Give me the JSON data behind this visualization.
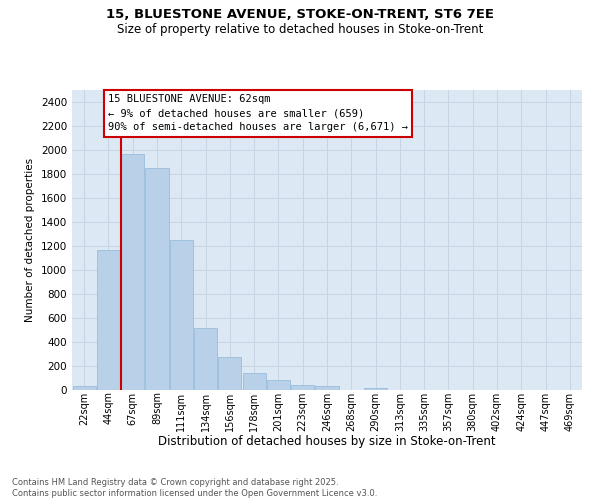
{
  "title1": "15, BLUESTONE AVENUE, STOKE-ON-TRENT, ST6 7EE",
  "title2": "Size of property relative to detached houses in Stoke-on-Trent",
  "xlabel": "Distribution of detached houses by size in Stoke-on-Trent",
  "ylabel": "Number of detached properties",
  "categories": [
    "22sqm",
    "44sqm",
    "67sqm",
    "89sqm",
    "111sqm",
    "134sqm",
    "156sqm",
    "178sqm",
    "201sqm",
    "223sqm",
    "246sqm",
    "268sqm",
    "290sqm",
    "313sqm",
    "335sqm",
    "357sqm",
    "380sqm",
    "402sqm",
    "424sqm",
    "447sqm",
    "469sqm"
  ],
  "values": [
    30,
    1170,
    1970,
    1850,
    1250,
    520,
    275,
    145,
    80,
    40,
    35,
    0,
    20,
    0,
    0,
    0,
    0,
    0,
    0,
    0,
    0
  ],
  "bar_color": "#b8d0e8",
  "bar_edge_color": "#90b8d8",
  "vline_x": 1.5,
  "vline_color": "#cc0000",
  "annotation_text_line1": "15 BLUESTONE AVENUE: 62sqm",
  "annotation_text_line2": "← 9% of detached houses are smaller (659)",
  "annotation_text_line3": "90% of semi-detached houses are larger (6,671) →",
  "annotation_box_bg": "#ffffff",
  "annotation_box_edge": "#cc0000",
  "ylim": [
    0,
    2500
  ],
  "yticks": [
    0,
    200,
    400,
    600,
    800,
    1000,
    1200,
    1400,
    1600,
    1800,
    2000,
    2200,
    2400
  ],
  "grid_color": "#c8d4e4",
  "background_color": "#dce8f4",
  "footer1": "Contains HM Land Registry data © Crown copyright and database right 2025.",
  "footer2": "Contains public sector information licensed under the Open Government Licence v3.0."
}
